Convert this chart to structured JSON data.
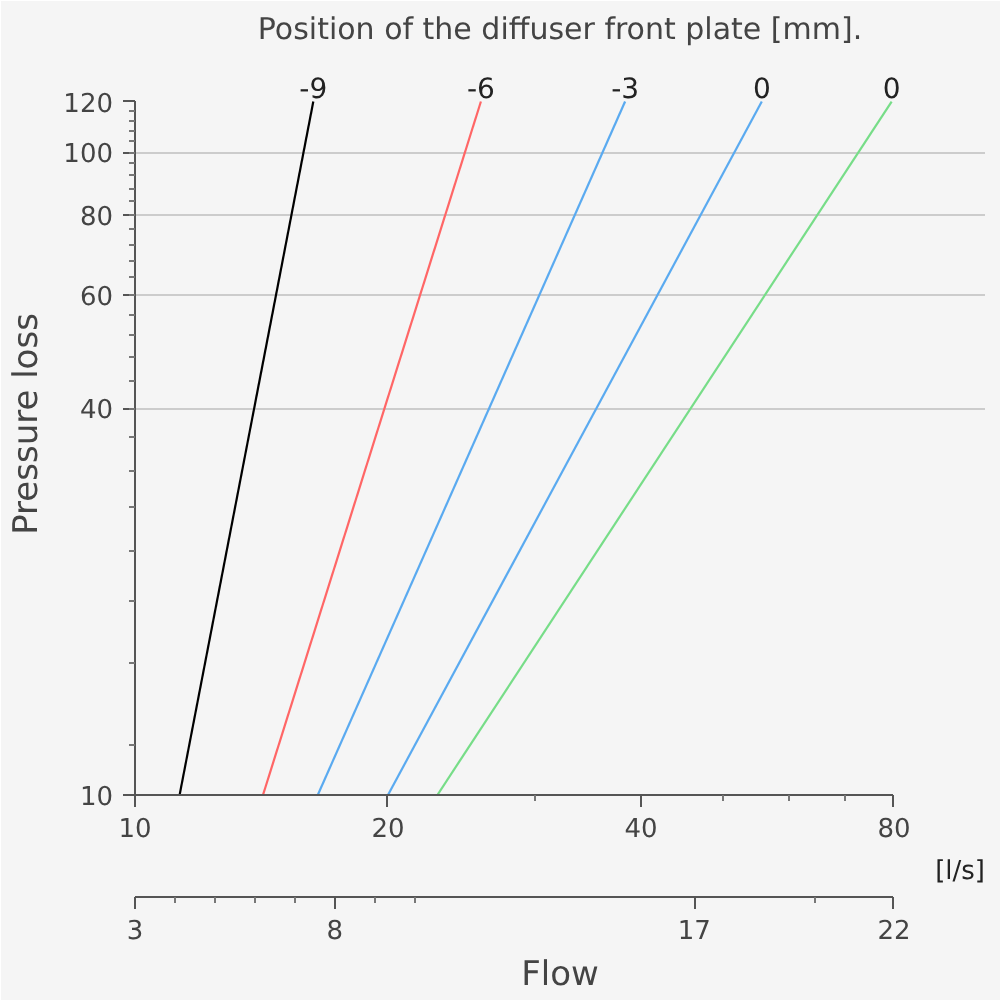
{
  "chart_data": {
    "type": "line",
    "title": "Position of the diffuser front plate [mm].",
    "xlabel": "Flow",
    "ylabel": "Pressure loss",
    "annotations": [
      "[l/s]"
    ],
    "log": "xy",
    "xlim": [
      10,
      80
    ],
    "xticks": [
      10,
      20,
      40,
      80
    ],
    "x2lim": [
      3,
      22
    ],
    "x2ticks": [
      3,
      8,
      17,
      22
    ],
    "ylim": [
      10,
      120
    ],
    "yticks": [
      10,
      40,
      60,
      80,
      100,
      120
    ],
    "grid": "y",
    "series": [
      {
        "name": "-9",
        "color": "#000000",
        "x": [
          11.3,
          16.3
        ],
        "values": [
          10,
          120
        ]
      },
      {
        "name": "-6",
        "color": "#ff6666",
        "x": [
          14.2,
          25.8
        ],
        "values": [
          10,
          120
        ]
      },
      {
        "name": "-3",
        "color": "#5aaaf0",
        "x": [
          16.5,
          38.3
        ],
        "values": [
          10,
          120
        ]
      },
      {
        "name": "0",
        "color": "#5aaaf0",
        "x": [
          20.0,
          55.7
        ],
        "values": [
          10,
          120
        ]
      },
      {
        "name": "0",
        "color": "#77dd88",
        "x": [
          22.9,
          79.5
        ],
        "values": [
          10,
          120
        ]
      }
    ]
  }
}
